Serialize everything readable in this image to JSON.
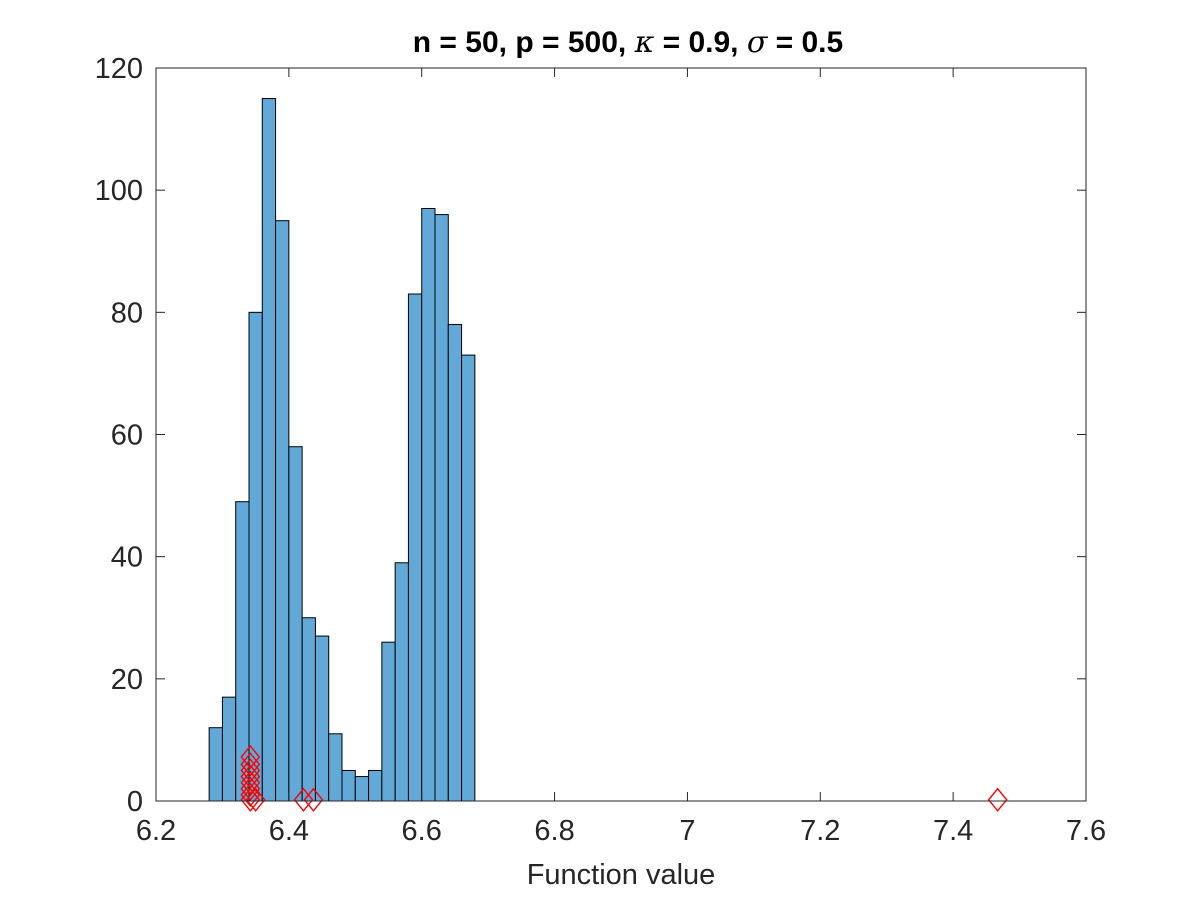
{
  "chart_data": {
    "type": "bar",
    "title_parts": [
      {
        "text": "n = 50, p = 500, ",
        "greek": false
      },
      {
        "text": "κ",
        "greek": true
      },
      {
        "text": " = 0.9, ",
        "greek": false
      },
      {
        "text": "σ",
        "greek": true
      },
      {
        "text": " = 0.5",
        "greek": false
      }
    ],
    "xlabel": "Function value",
    "ylabel": "",
    "xlim": [
      6.2,
      7.6
    ],
    "ylim": [
      0,
      120
    ],
    "xticks": [
      6.2,
      6.4,
      6.6,
      6.8,
      7.0,
      7.2,
      7.4,
      7.6
    ],
    "xtick_labels": [
      "6.2",
      "6.4",
      "6.6",
      "6.8",
      "7",
      "7.2",
      "7.4",
      "7.6"
    ],
    "yticks": [
      0,
      20,
      40,
      60,
      80,
      100,
      120
    ],
    "ytick_labels": [
      "0",
      "20",
      "40",
      "60",
      "80",
      "100",
      "120"
    ],
    "bins": {
      "start": 6.28,
      "width": 0.02,
      "counts": [
        12,
        17,
        49,
        80,
        115,
        95,
        58,
        30,
        27,
        11,
        5,
        4,
        5,
        26,
        39,
        83,
        97,
        96,
        78,
        73
      ]
    },
    "markers": {
      "shape": "diamond",
      "color": "#ff0000",
      "points": [
        {
          "x": 6.342,
          "y": 7.2
        },
        {
          "x": 6.342,
          "y": 6.0
        },
        {
          "x": 6.342,
          "y": 5.0
        },
        {
          "x": 6.342,
          "y": 4.0
        },
        {
          "x": 6.342,
          "y": 3.0
        },
        {
          "x": 6.342,
          "y": 2.0
        },
        {
          "x": 6.342,
          "y": 1.0
        },
        {
          "x": 6.342,
          "y": 0.2
        },
        {
          "x": 6.35,
          "y": 0.2
        },
        {
          "x": 6.422,
          "y": 0.2
        },
        {
          "x": 6.437,
          "y": 0.2
        },
        {
          "x": 7.467,
          "y": 0.2
        }
      ]
    },
    "bar_color": "#63a9d8",
    "grid": false,
    "legend": "none"
  }
}
